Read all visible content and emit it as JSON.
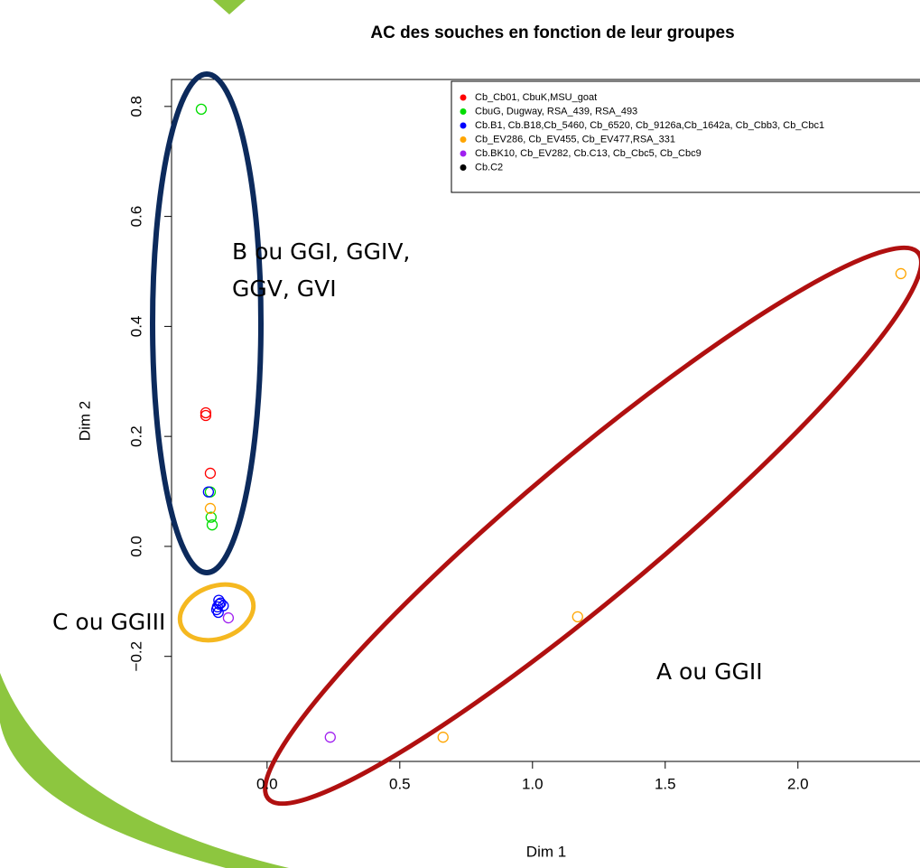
{
  "chart_data": {
    "type": "scatter",
    "title": "AC des souches en fonction de leur groupes",
    "xlabel": "Dim 1",
    "ylabel": "Dim 2",
    "xlim": [
      -0.36,
      2.46
    ],
    "ylim": [
      -0.391,
      0.849
    ],
    "xticks": [
      {
        "value": 0,
        "label": "0.0"
      },
      {
        "value": 0.5,
        "label": "0.5"
      },
      {
        "value": 1,
        "label": "1.0"
      },
      {
        "value": 1.5,
        "label": "1.5"
      },
      {
        "value": 2,
        "label": "2.0"
      }
    ],
    "yticks": [
      {
        "value": -0.2,
        "label": "−0.2"
      },
      {
        "value": 0,
        "label": "0.0"
      },
      0.2,
      0.4,
      0.6,
      0.8
    ],
    "legend": "top-right",
    "series": [
      {
        "name": "Cb_Cb01, CbuK,MSU_goat",
        "color": "#ff0000",
        "x": [
          -0.231,
          -0.231,
          -0.214
        ],
        "y": [
          0.243,
          0.238,
          0.133
        ]
      },
      {
        "name": "CbuG, Dugway, RSA_439, RSA_493",
        "color": "#00dd00",
        "x": [
          -0.248,
          -0.214,
          -0.211,
          -0.207
        ],
        "y": [
          0.795,
          0.099,
          0.053,
          0.039
        ]
      },
      {
        "name": "Cb.B1, Cb.B18,Cb_5460, Cb_6520, Cb_9126a,Cb_1642a, Cb_Cbb3, Cb_Cbc1",
        "color": "#0000ff",
        "x": [
          -0.221,
          -0.182,
          -0.18,
          -0.187,
          -0.175,
          -0.19,
          -0.165,
          -0.184
        ],
        "y": [
          0.099,
          -0.098,
          -0.105,
          -0.11,
          -0.103,
          -0.115,
          -0.108,
          -0.12
        ]
      },
      {
        "name": "Cb_EV286, Cb_EV455, Cb_EV477,RSA_331",
        "color": "#ffa500",
        "x": [
          -0.214,
          2.388,
          1.17,
          0.663
        ],
        "y": [
          0.069,
          0.496,
          -0.128,
          -0.347
        ]
      },
      {
        "name": "Cb.BK10, Cb_EV282, Cb.C13,  Cb_Cbc5, Cb_Cbc9",
        "color": "#a020f0",
        "x": [
          -0.146,
          0.238
        ],
        "y": [
          -0.13,
          -0.347
        ]
      },
      {
        "name": "Cb.C2",
        "color": "#000000",
        "x": [],
        "y": []
      }
    ],
    "annotations": [
      "B ou GGI, GGIV,",
      "GGV, GVI",
      "C ou GGIII",
      "A ou GGII"
    ]
  }
}
